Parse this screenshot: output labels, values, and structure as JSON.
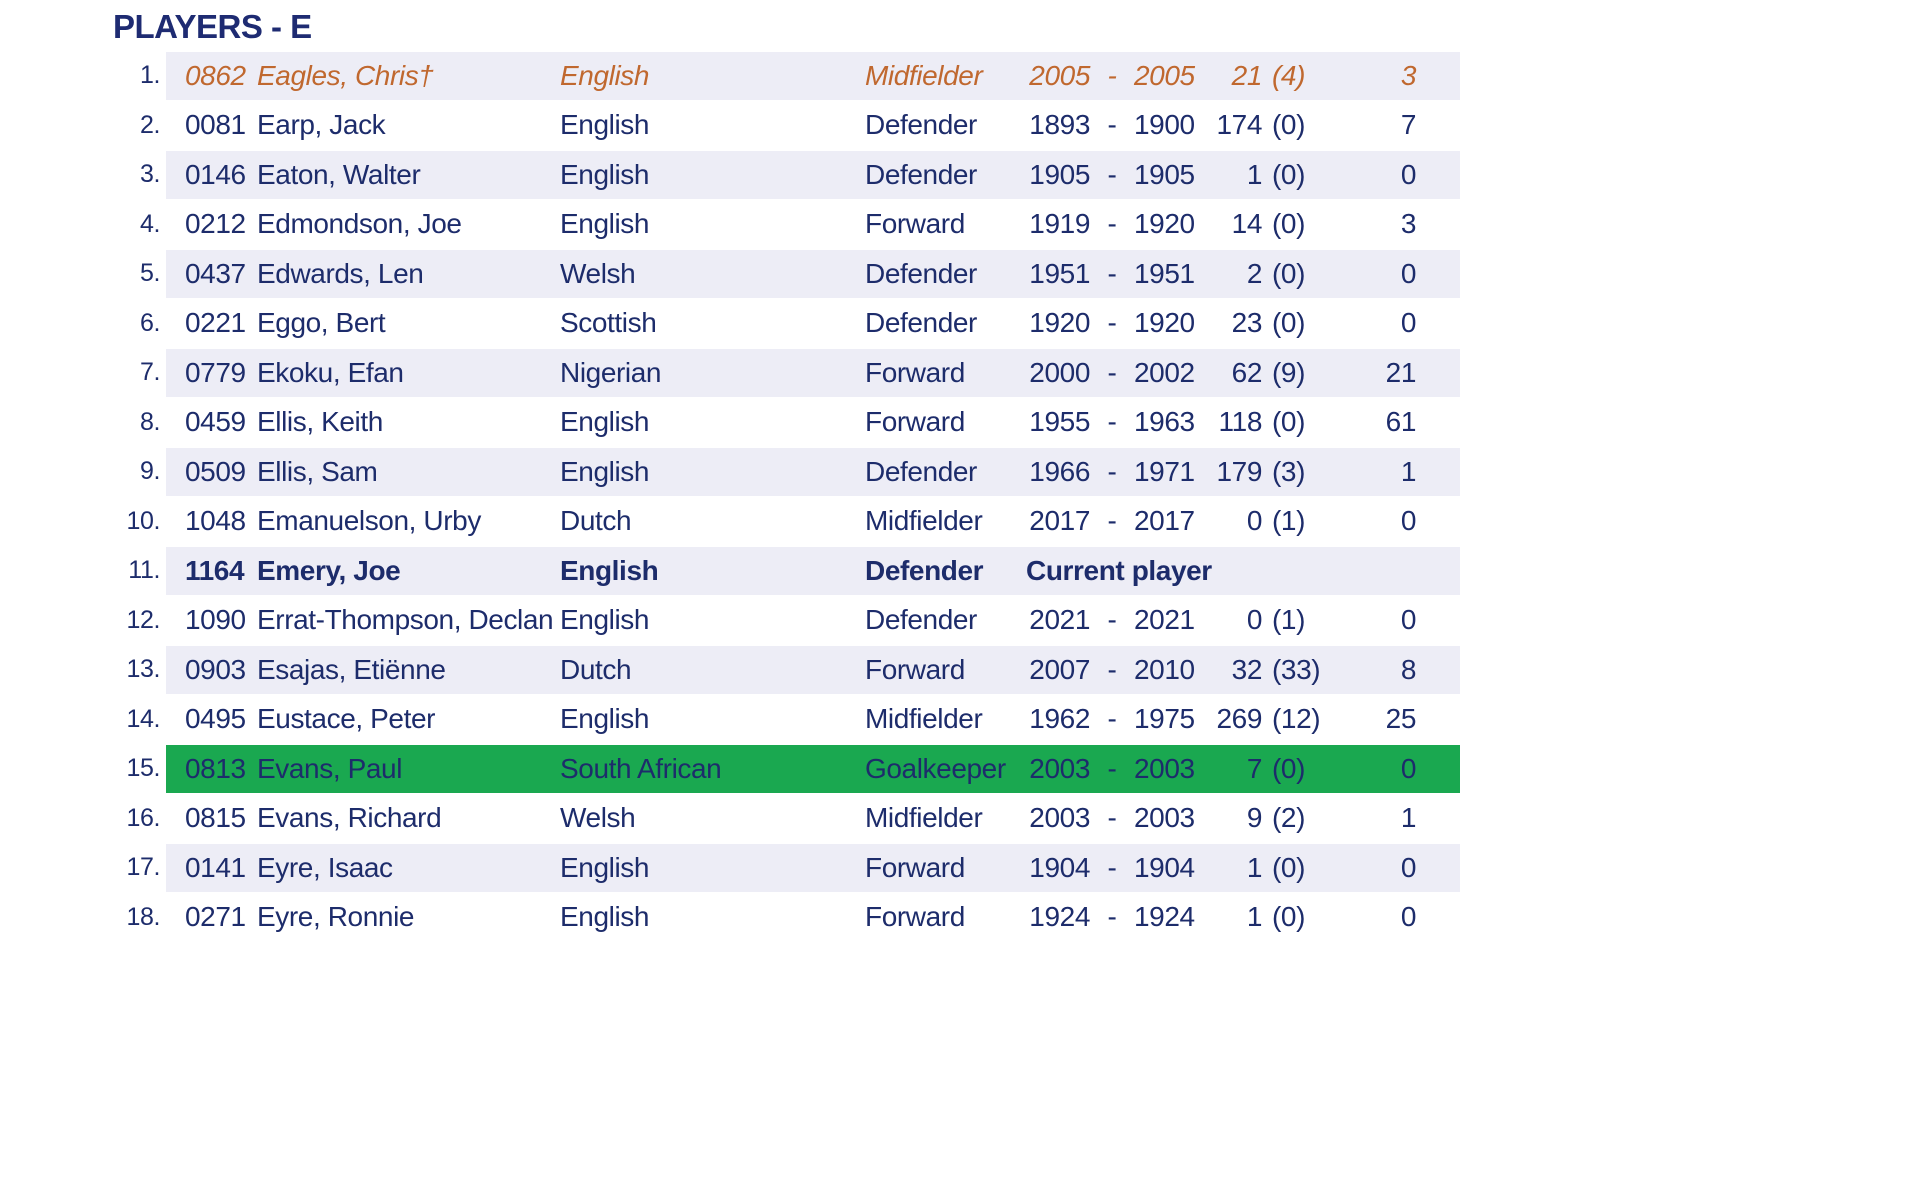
{
  "page": {
    "title": "PLAYERS - E"
  },
  "colors": {
    "title_navy": "#1e2b72",
    "text_navy": "#1d2c6b",
    "former_orange": "#c0682f",
    "row_alt_lavender": "#ededf6",
    "highlight_green": "#1aa850"
  },
  "table": {
    "year_separator": "-",
    "rows": [
      {
        "num": "1.",
        "id": "0862",
        "name": "Eagles, Chris†",
        "nationality": "English",
        "position": "Midfielder",
        "year_from": "2005",
        "year_to": "2005",
        "apps": "21",
        "apps_sub": "(4)",
        "goals": "3",
        "style": "former"
      },
      {
        "num": "2.",
        "id": "0081",
        "name": "Earp, Jack",
        "nationality": "English",
        "position": "Defender",
        "year_from": "1893",
        "year_to": "1900",
        "apps": "174",
        "apps_sub": "(0)",
        "goals": "7"
      },
      {
        "num": "3.",
        "id": "0146",
        "name": "Eaton, Walter",
        "nationality": "English",
        "position": "Defender",
        "year_from": "1905",
        "year_to": "1905",
        "apps": "1",
        "apps_sub": "(0)",
        "goals": "0"
      },
      {
        "num": "4.",
        "id": "0212",
        "name": "Edmondson, Joe",
        "nationality": "English",
        "position": "Forward",
        "year_from": "1919",
        "year_to": "1920",
        "apps": "14",
        "apps_sub": "(0)",
        "goals": "3"
      },
      {
        "num": "5.",
        "id": "0437",
        "name": "Edwards, Len",
        "nationality": "Welsh",
        "position": "Defender",
        "year_from": "1951",
        "year_to": "1951",
        "apps": "2",
        "apps_sub": "(0)",
        "goals": "0"
      },
      {
        "num": "6.",
        "id": "0221",
        "name": "Eggo, Bert",
        "nationality": "Scottish",
        "position": "Defender",
        "year_from": "1920",
        "year_to": "1920",
        "apps": "23",
        "apps_sub": "(0)",
        "goals": "0"
      },
      {
        "num": "7.",
        "id": "0779",
        "name": "Ekoku, Efan",
        "nationality": "Nigerian",
        "position": "Forward",
        "year_from": "2000",
        "year_to": "2002",
        "apps": "62",
        "apps_sub": "(9)",
        "goals": "21"
      },
      {
        "num": "8.",
        "id": "0459",
        "name": "Ellis, Keith",
        "nationality": "English",
        "position": "Forward",
        "year_from": "1955",
        "year_to": "1963",
        "apps": "118",
        "apps_sub": "(0)",
        "goals": "61"
      },
      {
        "num": "9.",
        "id": "0509",
        "name": "Ellis, Sam",
        "nationality": "English",
        "position": "Defender",
        "year_from": "1966",
        "year_to": "1971",
        "apps": "179",
        "apps_sub": "(3)",
        "goals": "1"
      },
      {
        "num": "10.",
        "id": "1048",
        "name": "Emanuelson, Urby",
        "nationality": "Dutch",
        "position": "Midfielder",
        "year_from": "2017",
        "year_to": "2017",
        "apps": "0",
        "apps_sub": "(1)",
        "goals": "0"
      },
      {
        "num": "11.",
        "id": "1164",
        "name": "Emery, Joe",
        "nationality": "English",
        "position": "Defender",
        "status": "Current player",
        "style": "current"
      },
      {
        "num": "12.",
        "id": "1090",
        "name": "Errat-Thompson, Declan",
        "nationality": "English",
        "position": "Defender",
        "year_from": "2021",
        "year_to": "2021",
        "apps": "0",
        "apps_sub": "(1)",
        "goals": "0"
      },
      {
        "num": "13.",
        "id": "0903",
        "name": "Esajas, Etiënne",
        "nationality": "Dutch",
        "position": "Forward",
        "year_from": "2007",
        "year_to": "2010",
        "apps": "32",
        "apps_sub": "(33)",
        "goals": "8"
      },
      {
        "num": "14.",
        "id": "0495",
        "name": "Eustace, Peter",
        "nationality": "English",
        "position": "Midfielder",
        "year_from": "1962",
        "year_to": "1975",
        "apps": "269",
        "apps_sub": "(12)",
        "goals": "25"
      },
      {
        "num": "15.",
        "id": "0813",
        "name": "Evans, Paul",
        "nationality": "South African",
        "position": "Goalkeeper",
        "year_from": "2003",
        "year_to": "2003",
        "apps": "7",
        "apps_sub": "(0)",
        "goals": "0",
        "style": "highlight"
      },
      {
        "num": "16.",
        "id": "0815",
        "name": "Evans, Richard",
        "nationality": "Welsh",
        "position": "Midfielder",
        "year_from": "2003",
        "year_to": "2003",
        "apps": "9",
        "apps_sub": "(2)",
        "goals": "1"
      },
      {
        "num": "17.",
        "id": "0141",
        "name": "Eyre, Isaac",
        "nationality": "English",
        "position": "Forward",
        "year_from": "1904",
        "year_to": "1904",
        "apps": "1",
        "apps_sub": "(0)",
        "goals": "0"
      },
      {
        "num": "18.",
        "id": "0271",
        "name": "Eyre, Ronnie",
        "nationality": "English",
        "position": "Forward",
        "year_from": "1924",
        "year_to": "1924",
        "apps": "1",
        "apps_sub": "(0)",
        "goals": "0"
      }
    ]
  }
}
